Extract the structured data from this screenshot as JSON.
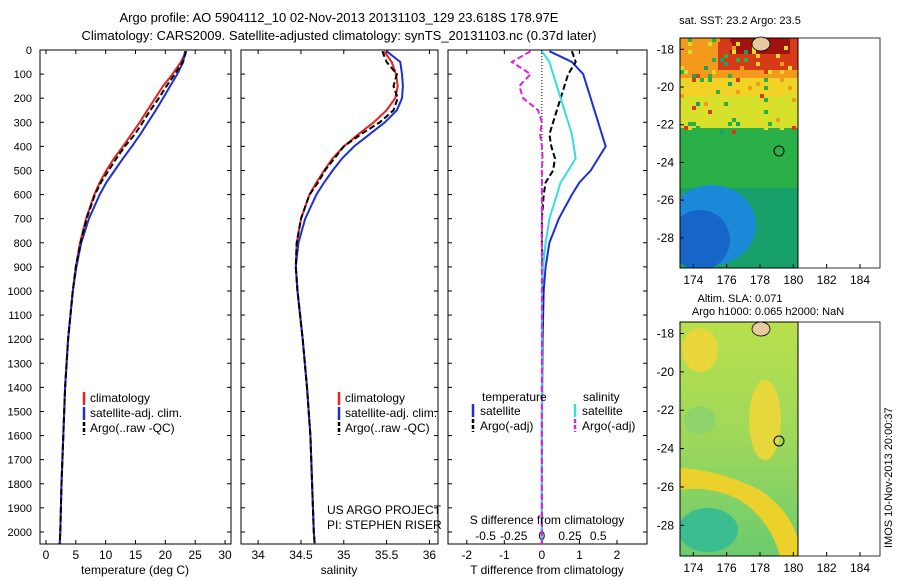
{
  "header": {
    "line1": "Argo profile: AO 5904112_10 02-Nov-2013 20131103_129 23.618S 178.97E",
    "line2": "Climatology: CARS2009. Satellite-adjusted climatology: synTS_20131103.nc (0.37d later)"
  },
  "colors": {
    "climatology": "#e8231e",
    "satellite": "#1a2fd8",
    "argo": "#000000",
    "sat_salinity": "#33e0e0",
    "argo_salinity": "#e020e0"
  },
  "chart_data": [
    {
      "type": "line",
      "panel": "temperature",
      "xlabel": "temperature (deg C)",
      "xlim": [
        -1,
        31
      ],
      "ylim": [
        2050,
        0
      ],
      "xticks": [
        0,
        5,
        10,
        15,
        20,
        25,
        30
      ],
      "yticks": [
        0,
        100,
        200,
        300,
        400,
        500,
        600,
        700,
        800,
        900,
        1000,
        1100,
        1200,
        1300,
        1400,
        1500,
        1600,
        1700,
        1800,
        1900,
        2000
      ],
      "legend": [
        "climatology",
        "satellite-adj. clim.",
        "Argo(..raw -QC)"
      ],
      "series": [
        {
          "name": "climatology",
          "color": "#e8231e",
          "style": "solid",
          "depth": [
            5,
            50,
            100,
            150,
            200,
            250,
            300,
            350,
            400,
            450,
            500,
            550,
            600,
            700,
            800,
            900,
            1000,
            1200,
            1400,
            1600,
            1800,
            2000,
            2050
          ],
          "values": [
            23.5,
            22.6,
            21.2,
            19.6,
            18.3,
            17.0,
            15.7,
            14.3,
            12.9,
            11.4,
            10.1,
            9.0,
            8.1,
            6.7,
            5.7,
            5.0,
            4.5,
            3.7,
            3.2,
            2.9,
            2.6,
            2.4,
            2.3
          ]
        },
        {
          "name": "satellite-adj. clim.",
          "color": "#1a2fd8",
          "style": "solid",
          "depth": [
            5,
            50,
            100,
            150,
            200,
            250,
            300,
            350,
            400,
            450,
            500,
            550,
            600,
            700,
            800,
            900,
            1000,
            1200,
            1400,
            1600,
            1800,
            2000,
            2050
          ],
          "values": [
            23.3,
            23.0,
            22.0,
            20.8,
            19.6,
            18.4,
            17.1,
            15.8,
            14.4,
            12.9,
            11.5,
            10.1,
            9.0,
            7.2,
            5.9,
            5.1,
            4.5,
            3.7,
            3.2,
            2.9,
            2.6,
            2.4,
            2.3
          ]
        },
        {
          "name": "Argo(..raw -QC)",
          "color": "#000000",
          "style": "dash",
          "depth": [
            5,
            50,
            100,
            150,
            200,
            250,
            300,
            350,
            400,
            450,
            500,
            550,
            600,
            700,
            800,
            900,
            1000,
            1200,
            1400,
            1600,
            1800,
            2000,
            2050
          ],
          "values": [
            23.5,
            22.9,
            21.6,
            20.2,
            18.9,
            17.5,
            16.2,
            14.9,
            13.2,
            11.8,
            10.5,
            9.2,
            8.2,
            6.8,
            5.8,
            5.0,
            4.5,
            3.7,
            3.2,
            2.9,
            2.6,
            2.4,
            2.3
          ]
        }
      ]
    },
    {
      "type": "line",
      "panel": "salinity",
      "xlabel": "salinity",
      "xlim": [
        33.8,
        36.1
      ],
      "ylim": [
        2050,
        0
      ],
      "xticks": [
        34,
        34.5,
        35,
        35.5,
        36
      ],
      "legend": [
        "climatology",
        "satellite-adj. clim.",
        "Argo(..raw -QC)"
      ],
      "annotations": [
        "US ARGO PROJECT",
        "PI: STEPHEN RISER"
      ],
      "series": [
        {
          "name": "climatology",
          "color": "#e8231e",
          "style": "solid",
          "depth": [
            5,
            50,
            100,
            150,
            200,
            250,
            300,
            350,
            400,
            450,
            500,
            550,
            600,
            700,
            800,
            900,
            1000,
            1200,
            1400,
            1600,
            1800,
            2000,
            2050
          ],
          "values": [
            35.47,
            35.56,
            35.61,
            35.63,
            35.6,
            35.5,
            35.35,
            35.17,
            35.0,
            34.87,
            34.77,
            34.68,
            34.6,
            34.5,
            34.45,
            34.44,
            34.46,
            34.52,
            34.57,
            34.61,
            34.63,
            34.65,
            34.66
          ]
        },
        {
          "name": "satellite-adj. clim.",
          "color": "#1a2fd8",
          "style": "solid",
          "depth": [
            5,
            50,
            100,
            150,
            200,
            250,
            300,
            350,
            400,
            450,
            500,
            550,
            600,
            700,
            800,
            900,
            1000,
            1200,
            1400,
            1600,
            1800,
            2000,
            2050
          ],
          "values": [
            35.5,
            35.66,
            35.68,
            35.69,
            35.68,
            35.62,
            35.48,
            35.3,
            35.12,
            34.98,
            34.87,
            34.77,
            34.68,
            34.55,
            34.47,
            34.44,
            34.46,
            34.52,
            34.57,
            34.61,
            34.63,
            34.65,
            34.66
          ]
        },
        {
          "name": "Argo(..raw -QC)",
          "color": "#000000",
          "style": "dash",
          "depth": [
            5,
            50,
            100,
            150,
            200,
            250,
            300,
            350,
            400,
            450,
            500,
            550,
            600,
            700,
            800,
            900,
            1000,
            1200,
            1400,
            1600,
            1800,
            2000,
            2050
          ],
          "values": [
            35.45,
            35.5,
            35.62,
            35.58,
            35.63,
            35.58,
            35.42,
            35.2,
            35.0,
            34.89,
            34.78,
            34.7,
            34.6,
            34.5,
            34.45,
            34.44,
            34.46,
            34.52,
            34.57,
            34.61,
            34.63,
            34.65,
            34.66
          ]
        }
      ]
    },
    {
      "type": "line",
      "panel": "difference",
      "xlabel": "T difference from climatology",
      "xlabel2": "S difference from climatology",
      "xlim": [
        -2.5,
        2.8
      ],
      "ylim": [
        2050,
        0
      ],
      "xticks": [
        -2,
        -1,
        0,
        1,
        2
      ],
      "xticks_s": [
        {
          "pos": -1.5,
          "label": "-0.5"
        },
        {
          "pos": -0.75,
          "label": "-0.25"
        },
        {
          "pos": 0,
          "label": "0"
        },
        {
          "pos": 0.75,
          "label": "0.25"
        },
        {
          "pos": 1.5,
          "label": "0.5"
        }
      ],
      "legend_headers": [
        "temperature",
        "salinity"
      ],
      "legend": [
        "satellite",
        "Argo(-adj)",
        "satellite",
        "Argo(-adj)"
      ],
      "series": [
        {
          "name": "satellite",
          "color": "#1a2fd8",
          "style": "solid",
          "depth": [
            5,
            50,
            100,
            150,
            200,
            250,
            300,
            350,
            400,
            450,
            500,
            550,
            600,
            700,
            800,
            900,
            1000,
            1200,
            1400,
            1600,
            1800,
            2000,
            2050
          ],
          "values": [
            0.2,
            0.8,
            1.1,
            1.2,
            1.3,
            1.4,
            1.5,
            1.6,
            1.7,
            1.5,
            1.3,
            1.0,
            0.8,
            0.45,
            0.2,
            0.1,
            0.05,
            0.02,
            0.01,
            0.0,
            0.0,
            0.0,
            0.0
          ]
        },
        {
          "name": "Argo(-adj)",
          "color": "#000000",
          "style": "dash",
          "depth": [
            5,
            50,
            100,
            150,
            200,
            250,
            300,
            350,
            400,
            450,
            500,
            550,
            600,
            700,
            800,
            900,
            1000,
            1200,
            1400,
            1600,
            1800,
            2000,
            2050
          ],
          "values": [
            0.8,
            0.9,
            0.7,
            0.6,
            0.5,
            0.4,
            0.3,
            0.2,
            0.25,
            0.35,
            0.3,
            0.1,
            0.05,
            0.0,
            0.0,
            0.02,
            0.02,
            0.01,
            0.0,
            0.0,
            0.0,
            0.0,
            0.0
          ]
        },
        {
          "name": "satellite",
          "color": "#33e0e0",
          "style": "solid",
          "depth": [
            5,
            50,
            100,
            150,
            200,
            250,
            300,
            350,
            400,
            450,
            500,
            550,
            600,
            700,
            800,
            900,
            1000,
            1200,
            1400,
            1600,
            1800,
            2000,
            2050
          ],
          "values": [
            0.0,
            0.2,
            0.3,
            0.4,
            0.5,
            0.6,
            0.7,
            0.8,
            0.85,
            0.9,
            0.7,
            0.5,
            0.4,
            0.2,
            0.1,
            0.03,
            0.0,
            0.0,
            0.0,
            0.0,
            0.0,
            0.0,
            0.0
          ]
        },
        {
          "name": "Argo(-adj)",
          "color": "#e020e0",
          "style": "dash",
          "depth": [
            5,
            50,
            100,
            150,
            200,
            250,
            300,
            350,
            400,
            450,
            500,
            550,
            600,
            700,
            800,
            900,
            1000,
            1200,
            1400,
            1600,
            1800,
            2000,
            2050
          ],
          "values": [
            -0.3,
            -0.8,
            -0.3,
            -0.6,
            -0.5,
            -0.1,
            0.0,
            -0.05,
            0.0,
            0.02,
            0.0,
            0.0,
            0.0,
            0.0,
            0.0,
            0.0,
            0.0,
            0.0,
            0.0,
            0.0,
            0.0,
            0.0,
            0.0
          ]
        }
      ]
    },
    {
      "type": "heatmap",
      "panel": "sst_map",
      "title": "sat. SST: 23.2 Argo: 23.5",
      "xticks": [
        174,
        176,
        178,
        180,
        182,
        184
      ],
      "yticks": [
        -18,
        -20,
        -22,
        -24,
        -26,
        -28
      ],
      "marker": {
        "lon": 178.97,
        "lat": -23.618
      }
    },
    {
      "type": "heatmap",
      "panel": "sla_map",
      "title": "Altim. SLA: 0.071",
      "subtitle": "Argo h1000: 0.065 h2000: NaN",
      "xticks": [
        174,
        176,
        178,
        180,
        182,
        184
      ],
      "yticks": [
        -18,
        -20,
        -22,
        -24,
        -26,
        -28
      ],
      "marker": {
        "lon": 178.97,
        "lat": -23.618
      }
    }
  ],
  "footer": {
    "credit": "IMOS 10-Nov-2013 20:00:37"
  }
}
